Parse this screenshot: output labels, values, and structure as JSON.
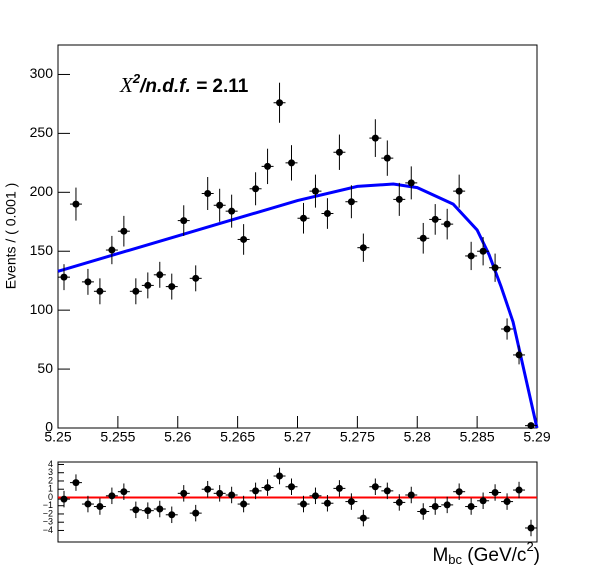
{
  "chart_data": [
    {
      "type": "scatter",
      "ylabel": "Events / ( 0.001 )",
      "xlabel": {
        "base": "M",
        "sub": "bc",
        "rest": " (GeV/c",
        "sup": "2",
        "end": ")"
      },
      "annotation": {
        "base": "X",
        "sup": "2",
        "rest": "/n.d.f. =  ",
        "value": "2.11"
      },
      "x": [
        5.2505,
        5.2515,
        5.2525,
        5.2535,
        5.2545,
        5.2555,
        5.2565,
        5.2575,
        5.2585,
        5.2595,
        5.2605,
        5.2615,
        5.2625,
        5.2635,
        5.2645,
        5.2655,
        5.2665,
        5.2675,
        5.2685,
        5.2695,
        5.2705,
        5.2715,
        5.2725,
        5.2735,
        5.2745,
        5.2755,
        5.2765,
        5.2775,
        5.2785,
        5.2795,
        5.2805,
        5.2815,
        5.2825,
        5.2835,
        5.2845,
        5.2855,
        5.2865,
        5.2875,
        5.2885,
        5.2895
      ],
      "bin_width": 0.001,
      "values": [
        128,
        190,
        124,
        116,
        151,
        167,
        116,
        121,
        130,
        120,
        176,
        127,
        199,
        189,
        184,
        160,
        203,
        222,
        276,
        225,
        178,
        201,
        182,
        234,
        192,
        153,
        246,
        229,
        194,
        208,
        161,
        177,
        173,
        201,
        146,
        150,
        136,
        84,
        62,
        2
      ],
      "errors": [
        11,
        14,
        11,
        11,
        12,
        13,
        11,
        11,
        11,
        11,
        13,
        11,
        14,
        14,
        14,
        13,
        14,
        15,
        17,
        15,
        13,
        14,
        13,
        15,
        14,
        12,
        16,
        15,
        14,
        14,
        13,
        13,
        13,
        14,
        12,
        12,
        12,
        9,
        8,
        1
      ],
      "color": "#000000",
      "fit": {
        "color": "#0000ff",
        "x": [
          5.25,
          5.255,
          5.26,
          5.265,
          5.27,
          5.275,
          5.278,
          5.28,
          5.283,
          5.285,
          5.286,
          5.287,
          5.288,
          5.289,
          5.29
        ],
        "values": [
          133,
          148,
          163,
          178,
          193,
          205,
          207,
          204,
          190,
          168,
          147,
          120,
          90,
          45,
          0
        ]
      },
      "xlim": [
        5.25,
        5.29
      ],
      "ylim": [
        0,
        325
      ],
      "xticks": [
        5.25,
        5.255,
        5.26,
        5.265,
        5.27,
        5.275,
        5.28,
        5.285,
        5.29
      ],
      "yticks": [
        0,
        50,
        100,
        150,
        200,
        250,
        300
      ]
    },
    {
      "type": "scatter",
      "x": [
        5.2505,
        5.2515,
        5.2525,
        5.2535,
        5.2545,
        5.2555,
        5.2565,
        5.2575,
        5.2585,
        5.2595,
        5.2605,
        5.2615,
        5.2625,
        5.2635,
        5.2645,
        5.2655,
        5.2665,
        5.2675,
        5.2685,
        5.2695,
        5.2705,
        5.2715,
        5.2725,
        5.2735,
        5.2745,
        5.2755,
        5.2765,
        5.2775,
        5.2785,
        5.2795,
        5.2805,
        5.2815,
        5.2825,
        5.2835,
        5.2845,
        5.2855,
        5.2865,
        5.2875,
        5.2885,
        5.2895
      ],
      "bin_width": 0.001,
      "values": [
        -0.2,
        1.8,
        -0.8,
        -1.1,
        0.2,
        0.7,
        -1.5,
        -1.6,
        -1.4,
        -2.1,
        0.5,
        -1.9,
        1.0,
        0.5,
        0.3,
        -0.8,
        0.8,
        1.2,
        2.6,
        1.3,
        -0.8,
        0.2,
        -0.7,
        1.1,
        -0.5,
        -2.5,
        1.3,
        0.8,
        -0.6,
        0.3,
        -1.7,
        -1.1,
        -0.9,
        0.7,
        -1.1,
        -0.4,
        0.6,
        -0.5,
        0.9,
        -3.7
      ],
      "errors": [
        1,
        1,
        1,
        1,
        1,
        1,
        1,
        1,
        1,
        1,
        1,
        1,
        1,
        1,
        1,
        1,
        1,
        1,
        1,
        1,
        1,
        1,
        1,
        1,
        1,
        1,
        1,
        1,
        1,
        1,
        1,
        1,
        1,
        1,
        1,
        1,
        1,
        1,
        1,
        1
      ],
      "color": "#000000",
      "zero_line": {
        "value": 0,
        "color": "#ff0000"
      },
      "xlim": [
        5.25,
        5.29
      ],
      "ylim": [
        -5.4,
        4.3
      ],
      "yticks": [
        4,
        3,
        2,
        1,
        0,
        {
          "value": -1,
          "label": "−1"
        },
        {
          "value": -2,
          "label": "−2"
        },
        {
          "value": -3,
          "label": "−3"
        },
        {
          "value": -4,
          "label": "−4"
        }
      ]
    }
  ]
}
